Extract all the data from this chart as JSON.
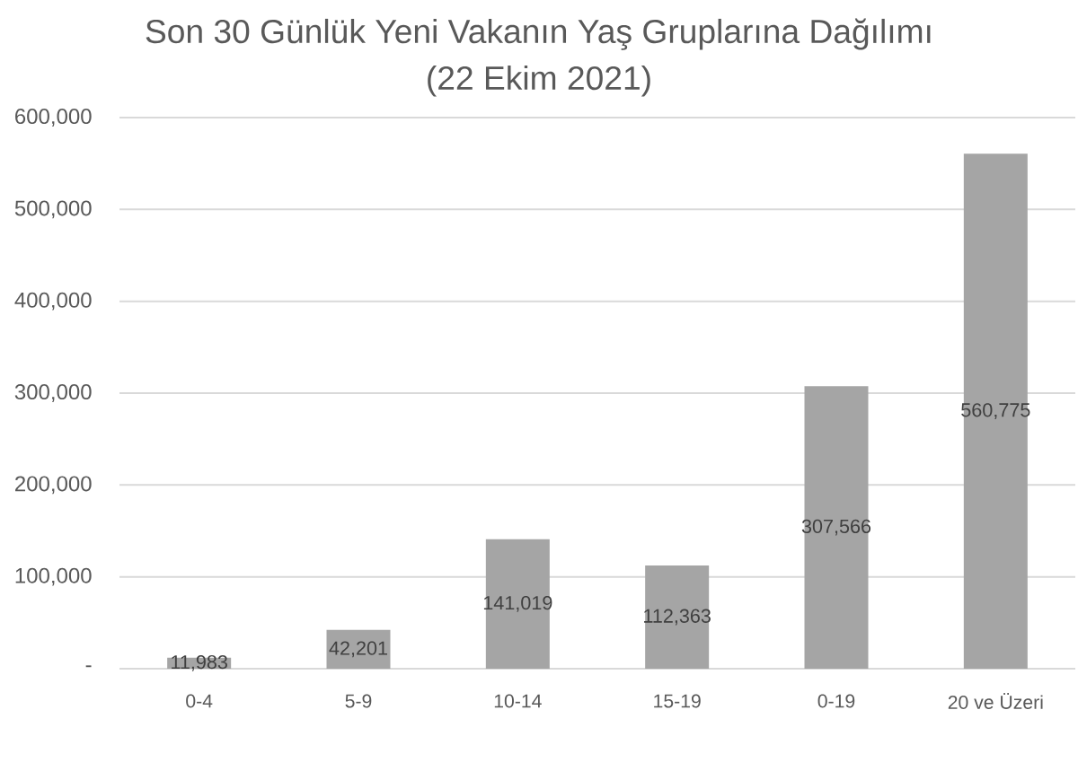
{
  "chart_data": {
    "type": "bar",
    "title": "Son 30 Günlük Yeni Vakanın Yaş Gruplarına Dağılımı",
    "subtitle": "(22 Ekim 2021)",
    "categories": [
      "0-4",
      "5-9",
      "10-14",
      "15-19",
      "0-19",
      "20 ve Üzeri"
    ],
    "values": [
      11983,
      42201,
      141019,
      112363,
      307566,
      560775
    ],
    "value_labels": [
      "11,983",
      "42,201",
      "141,019",
      "112,363",
      "307,566",
      "560,775"
    ],
    "color": "#a5a5a5",
    "ylim": [
      0,
      600000
    ],
    "yticks": [
      {
        "value": 0,
        "label": "-"
      },
      {
        "value": 100000,
        "label": "100,000"
      },
      {
        "value": 200000,
        "label": "200,000"
      },
      {
        "value": 300000,
        "label": "300,000"
      },
      {
        "value": 400000,
        "label": "400,000"
      },
      {
        "value": 500000,
        "label": "500,000"
      },
      {
        "value": 600000,
        "label": "600,000"
      }
    ],
    "grid": "y"
  }
}
